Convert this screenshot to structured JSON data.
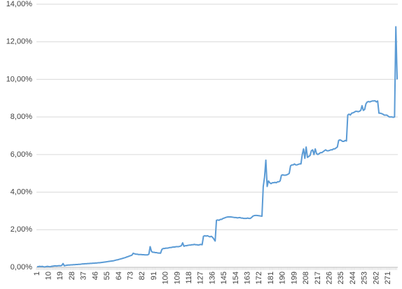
{
  "chart_data": {
    "type": "line",
    "color": "#5b9bd5",
    "grid": true,
    "ylim": [
      0,
      14
    ],
    "yticks": [
      {
        "value": 0,
        "label": "0,00%"
      },
      {
        "value": 2,
        "label": "2,00%"
      },
      {
        "value": 4,
        "label": "4,00%"
      },
      {
        "value": 6,
        "label": "6,00%"
      },
      {
        "value": 8,
        "label": "8,00%"
      },
      {
        "value": 10,
        "label": "10,00%"
      },
      {
        "value": 12,
        "label": "12,00%"
      },
      {
        "value": 14,
        "label": "14,00%"
      }
    ],
    "categories": [
      "1",
      null,
      null,
      null,
      null,
      null,
      null,
      null,
      null,
      "10",
      null,
      null,
      null,
      null,
      null,
      null,
      null,
      null,
      "19",
      null,
      null,
      null,
      null,
      null,
      null,
      null,
      null,
      "28",
      null,
      null,
      null,
      null,
      null,
      null,
      null,
      null,
      "37",
      null,
      null,
      null,
      null,
      null,
      null,
      null,
      null,
      "46",
      null,
      null,
      null,
      null,
      null,
      null,
      null,
      null,
      "55",
      null,
      null,
      null,
      null,
      null,
      null,
      null,
      null,
      "64",
      null,
      null,
      null,
      null,
      null,
      null,
      null,
      null,
      "73",
      null,
      null,
      null,
      null,
      null,
      null,
      null,
      null,
      "82",
      null,
      null,
      null,
      null,
      null,
      null,
      null,
      null,
      "91",
      null,
      null,
      null,
      null,
      null,
      null,
      null,
      null,
      "100",
      null,
      null,
      null,
      null,
      null,
      null,
      null,
      null,
      "109",
      null,
      null,
      null,
      null,
      null,
      null,
      null,
      null,
      "118",
      null,
      null,
      null,
      null,
      null,
      null,
      null,
      null,
      "127",
      null,
      null,
      null,
      null,
      null,
      null,
      null,
      null,
      "136",
      null,
      null,
      null,
      null,
      null,
      null,
      null,
      null,
      "145",
      null,
      null,
      null,
      null,
      null,
      null,
      null,
      null,
      "154",
      null,
      null,
      null,
      null,
      null,
      null,
      null,
      null,
      "163",
      null,
      null,
      null,
      null,
      null,
      null,
      null,
      null,
      "172",
      null,
      null,
      null,
      null,
      null,
      null,
      null,
      null,
      "181",
      null,
      null,
      null,
      null,
      null,
      null,
      null,
      null,
      "190",
      null,
      null,
      null,
      null,
      null,
      null,
      null,
      null,
      "199",
      null,
      null,
      null,
      null,
      null,
      null,
      null,
      null,
      "208",
      null,
      null,
      null,
      null,
      null,
      null,
      null,
      null,
      "217",
      null,
      null,
      null,
      null,
      null,
      null,
      null,
      null,
      "226",
      null,
      null,
      null,
      null,
      null,
      null,
      null,
      null,
      "235",
      null,
      null,
      null,
      null,
      null,
      null,
      null,
      null,
      "244",
      null,
      null,
      null,
      null,
      null,
      null,
      null,
      null,
      "253",
      null,
      null,
      null,
      null,
      null,
      null,
      null,
      null,
      "262",
      null,
      null,
      null,
      null,
      null,
      null,
      null,
      null,
      "271",
      null,
      null,
      null,
      null,
      null,
      null,
      null
    ],
    "values": [
      0.03,
      0.04,
      0.05,
      0.04,
      0.05,
      0.03,
      0.02,
      0.04,
      0.05,
      0.04,
      0.03,
      0.05,
      0.06,
      0.07,
      0.08,
      0.07,
      0.08,
      0.09,
      0.08,
      0.1,
      0.2,
      0.08,
      0.1,
      0.11,
      0.12,
      0.12,
      0.13,
      0.13,
      0.14,
      0.14,
      0.15,
      0.15,
      0.16,
      0.16,
      0.17,
      0.18,
      0.18,
      0.19,
      0.19,
      0.2,
      0.2,
      0.21,
      0.21,
      0.22,
      0.22,
      0.23,
      0.23,
      0.24,
      0.24,
      0.25,
      0.26,
      0.27,
      0.28,
      0.29,
      0.3,
      0.31,
      0.32,
      0.33,
      0.34,
      0.35,
      0.37,
      0.39,
      0.4,
      0.42,
      0.44,
      0.46,
      0.48,
      0.5,
      0.52,
      0.55,
      0.57,
      0.6,
      0.62,
      0.65,
      0.75,
      0.72,
      0.7,
      0.7,
      0.68,
      0.68,
      0.68,
      0.67,
      0.67,
      0.66,
      0.66,
      0.66,
      0.7,
      1.1,
      0.85,
      0.8,
      0.8,
      0.78,
      0.78,
      0.76,
      0.76,
      0.75,
      0.95,
      1.0,
      1.0,
      1.02,
      1.02,
      1.03,
      1.05,
      1.05,
      1.07,
      1.08,
      1.08,
      1.1,
      1.1,
      1.1,
      1.12,
      1.15,
      1.3,
      1.12,
      1.15,
      1.15,
      1.17,
      1.18,
      1.18,
      1.2,
      1.2,
      1.22,
      1.2,
      1.2,
      1.18,
      1.2,
      1.22,
      1.2,
      1.65,
      1.68,
      1.66,
      1.68,
      1.65,
      1.62,
      1.65,
      1.6,
      1.5,
      1.4,
      2.5,
      2.52,
      2.5,
      2.55,
      2.55,
      2.6,
      2.62,
      2.65,
      2.67,
      2.68,
      2.68,
      2.68,
      2.67,
      2.66,
      2.65,
      2.65,
      2.63,
      2.64,
      2.65,
      2.62,
      2.62,
      2.6,
      2.6,
      2.6,
      2.62,
      2.6,
      2.6,
      2.65,
      2.72,
      2.75,
      2.76,
      2.76,
      2.75,
      2.74,
      2.73,
      2.72,
      4.3,
      4.8,
      5.7,
      4.3,
      4.6,
      4.5,
      4.45,
      4.5,
      4.5,
      4.52,
      4.5,
      4.55,
      4.55,
      4.6,
      4.9,
      4.92,
      4.9,
      4.9,
      4.92,
      4.95,
      5.0,
      5.4,
      5.45,
      5.45,
      5.5,
      5.45,
      5.45,
      5.48,
      5.5,
      5.5,
      6.0,
      6.3,
      5.8,
      6.4,
      5.85,
      5.9,
      5.95,
      6.2,
      6.25,
      6.0,
      6.3,
      6.05,
      6.0,
      6.05,
      6.1,
      6.1,
      6.15,
      6.2,
      6.25,
      6.2,
      6.2,
      6.22,
      6.25,
      6.25,
      6.3,
      6.3,
      6.35,
      6.4,
      6.75,
      6.78,
      6.75,
      6.7,
      6.7,
      6.75,
      6.72,
      8.1,
      8.15,
      8.1,
      8.2,
      8.22,
      8.25,
      8.3,
      8.3,
      8.28,
      8.3,
      8.35,
      8.6,
      8.35,
      8.4,
      8.7,
      8.8,
      8.82,
      8.8,
      8.83,
      8.85,
      8.85,
      8.86,
      8.8,
      8.85,
      8.2,
      8.2,
      8.18,
      8.15,
      8.1,
      8.1,
      8.1,
      8.05,
      8.0,
      8.0,
      8.0,
      7.98,
      8.0,
      12.8,
      10.0
    ]
  }
}
